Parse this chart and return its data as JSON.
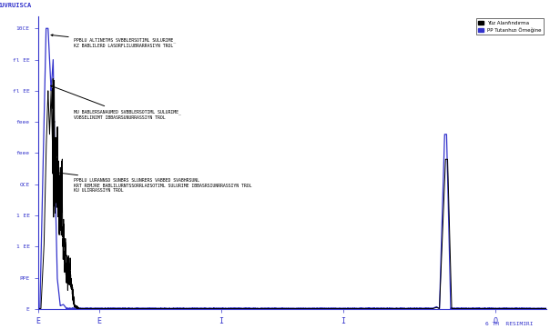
{
  "xlabel_right": "6 TH  RESIMIRI",
  "ylabel": "KUVRUISCA",
  "xlim": [
    0,
    5
  ],
  "ylim": [
    0,
    4700
  ],
  "ytick_vals": [
    0,
    500,
    1000,
    1500,
    2000,
    2500,
    3000,
    3500,
    4000,
    4500
  ],
  "ytick_labels": [
    "E",
    "PPE",
    "1 EE",
    "1 EE",
    "OCE",
    "feee",
    "feee",
    "fl EE",
    "fl EE",
    "10CE"
  ],
  "xtick_positions": [
    0.0,
    0.6,
    1.8,
    3.0,
    4.5
  ],
  "xtick_labels": [
    "E",
    "E",
    "I",
    "I",
    "O"
  ],
  "line1_color": "#000000",
  "line2_color": "#3333cc",
  "legend_label1": "Yüz Alanfındırma",
  "legend_label2": "PP Tutanhızı Örneğine",
  "annotation1_text": "PPBLU ALTINETMS SVBBLERSOTIML SULURIME_\nKZ BABLILERD LASORFLILUBRARRASIYN TROL",
  "annotation2_text": "MU BABLERSANAUMED SVBBLERSOTIML SULURIME_\nVOBSELINIMT IBBASRSUNURRASSIYN TROL",
  "annotation3_text": "PPBLU LURANNSD SUNBRS SLUNRERS VABBED SVABHRSUNL\nKRT REMJRE BABLILURNTSSORRLAESOTIML SULURIME IBBASRSIUNRRASSIYN TROL\nKU ULIRRASSIYN TROL",
  "bg_color": "#ffffff",
  "spine_color": "#3333cc",
  "tick_color": "#3333cc"
}
